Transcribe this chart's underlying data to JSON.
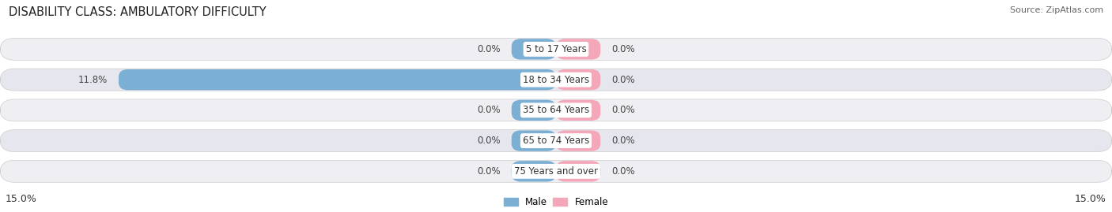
{
  "title": "DISABILITY CLASS: AMBULATORY DIFFICULTY",
  "source": "Source: ZipAtlas.com",
  "categories": [
    "5 to 17 Years",
    "18 to 34 Years",
    "35 to 64 Years",
    "65 to 74 Years",
    "75 Years and over"
  ],
  "male_values": [
    0.0,
    11.8,
    0.0,
    0.0,
    0.0
  ],
  "female_values": [
    0.0,
    0.0,
    0.0,
    0.0,
    0.0
  ],
  "xlim": 15.0,
  "male_color": "#7bafd4",
  "female_color": "#f4a7b9",
  "row_colors": [
    "#eeeef3",
    "#e6e6ee"
  ],
  "title_fontsize": 10.5,
  "label_fontsize": 8.5,
  "tick_fontsize": 9,
  "source_fontsize": 8,
  "min_bar_width": 1.2
}
